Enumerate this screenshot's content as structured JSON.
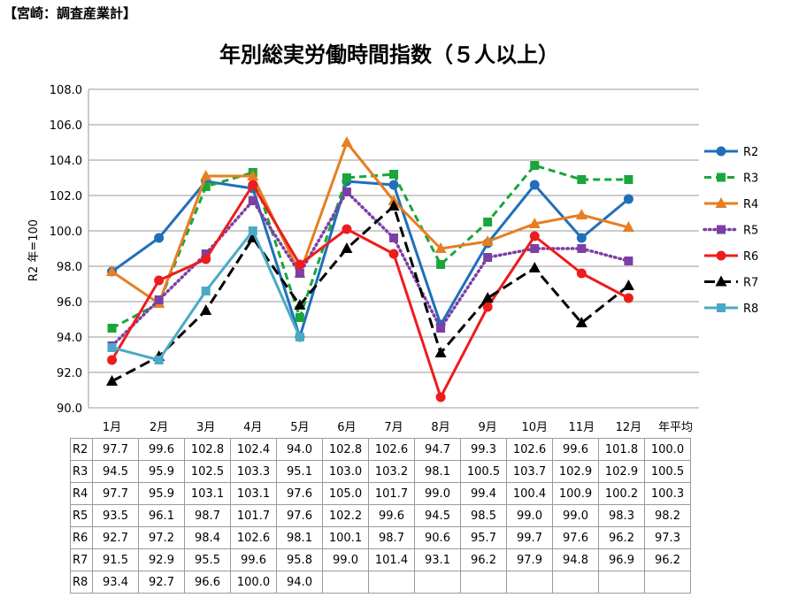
{
  "source_label": "【宮崎：調査産業計】",
  "chart_data": {
    "type": "line",
    "title": "年別総実労働時間指数（５人以上）",
    "ylabel": "R2 年=100",
    "xlabel": "",
    "ylim": [
      90,
      108
    ],
    "yticks": [
      "90.0",
      "92.0",
      "94.0",
      "96.0",
      "98.0",
      "100.0",
      "102.0",
      "104.0",
      "106.0",
      "108.0"
    ],
    "categories": [
      "1月",
      "2月",
      "3月",
      "4月",
      "5月",
      "6月",
      "7月",
      "8月",
      "9月",
      "10月",
      "11月",
      "12月",
      "年平均"
    ],
    "grid": "horizontal",
    "legend_position": "right",
    "series": [
      {
        "name": "R2",
        "color": "#1f6fba",
        "dash": "solid",
        "marker": "circle",
        "values": [
          97.7,
          99.6,
          102.8,
          102.4,
          94.0,
          102.8,
          102.6,
          94.7,
          99.3,
          102.6,
          99.6,
          101.8,
          100.0
        ]
      },
      {
        "name": "R3",
        "color": "#1aa63a",
        "dash": "dashed",
        "marker": "square",
        "values": [
          94.5,
          95.9,
          102.5,
          103.3,
          95.1,
          103.0,
          103.2,
          98.1,
          100.5,
          103.7,
          102.9,
          102.9,
          100.5
        ]
      },
      {
        "name": "R4",
        "color": "#e67e22",
        "dash": "solid",
        "marker": "triangle",
        "values": [
          97.7,
          95.9,
          103.1,
          103.1,
          97.6,
          105.0,
          101.7,
          99.0,
          99.4,
          100.4,
          100.9,
          100.2,
          100.3
        ]
      },
      {
        "name": "R5",
        "color": "#7b3fa6",
        "dash": "dotted",
        "marker": "square",
        "values": [
          93.5,
          96.1,
          98.7,
          101.7,
          97.6,
          102.2,
          99.6,
          94.5,
          98.5,
          99.0,
          99.0,
          98.3,
          98.2
        ]
      },
      {
        "name": "R6",
        "color": "#ee1c1c",
        "dash": "solid",
        "marker": "circle",
        "values": [
          92.7,
          97.2,
          98.4,
          102.6,
          98.1,
          100.1,
          98.7,
          90.6,
          95.7,
          99.7,
          97.6,
          96.2,
          97.3
        ]
      },
      {
        "name": "R7",
        "color": "#000000",
        "dash": "longdash",
        "marker": "triangle",
        "values": [
          91.5,
          92.9,
          95.5,
          99.6,
          95.8,
          99.0,
          101.4,
          93.1,
          96.2,
          97.9,
          94.8,
          96.9,
          96.2
        ]
      },
      {
        "name": "R8",
        "color": "#4aaac6",
        "dash": "solid",
        "marker": "square",
        "values": [
          93.4,
          92.7,
          96.6,
          100.0,
          94.0,
          null,
          null,
          null,
          null,
          null,
          null,
          null,
          null
        ]
      }
    ]
  }
}
